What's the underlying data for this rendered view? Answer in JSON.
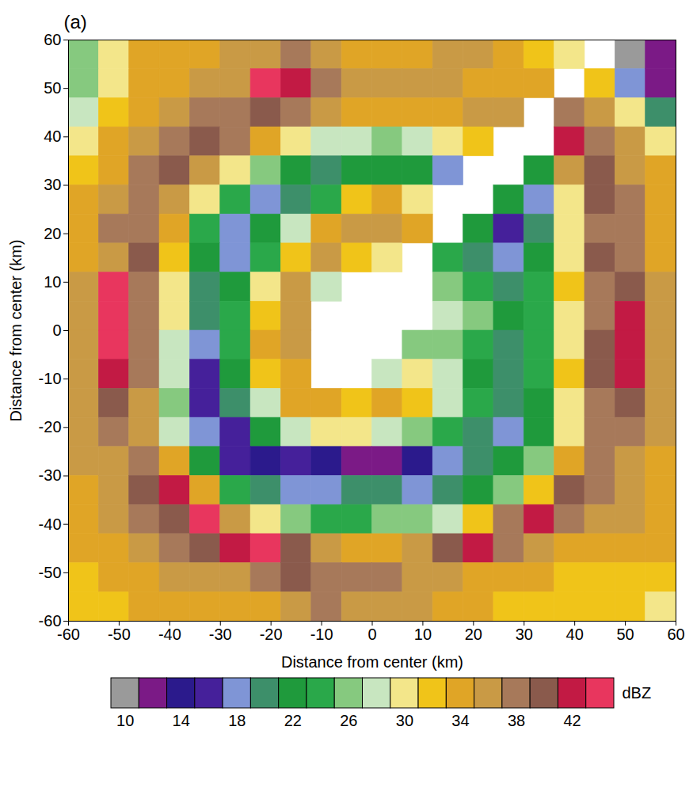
{
  "chart_data": {
    "type": "heatmap",
    "panel_label": "(a)",
    "xlabel": "Distance from center (km)",
    "ylabel": "Distance from center (km)",
    "xlim": [
      -60,
      60
    ],
    "ylim": [
      -60,
      60
    ],
    "xticks": [
      -60,
      -50,
      -40,
      -30,
      -20,
      -10,
      0,
      10,
      20,
      30,
      40,
      50,
      60
    ],
    "yticks": [
      -60,
      -50,
      -40,
      -30,
      -20,
      -10,
      0,
      10,
      20,
      30,
      40,
      50,
      60
    ],
    "x": [
      -57,
      -51,
      -45,
      -39,
      -33,
      -27,
      -21,
      -15,
      -9,
      -3,
      3,
      9,
      15,
      21,
      27,
      33,
      39,
      45,
      51,
      57
    ],
    "y": [
      57,
      51,
      45,
      39,
      33,
      27,
      21,
      15,
      9,
      3,
      -3,
      -9,
      -15,
      -21,
      -27,
      -33,
      -39,
      -45,
      -51,
      -57
    ],
    "z": [
      [
        26,
        30,
        33,
        34,
        34,
        36,
        36,
        37,
        36,
        34,
        33,
        34,
        36,
        35,
        34,
        32,
        30,
        null,
        10,
        12
      ],
      [
        26,
        30,
        33,
        34,
        35,
        36,
        43,
        42,
        38,
        36,
        36,
        36,
        36,
        34,
        34,
        33,
        null,
        32,
        18,
        12
      ],
      [
        28,
        31,
        34,
        36,
        38,
        38,
        40,
        38,
        35,
        34,
        33,
        33,
        34,
        35,
        36,
        null,
        38,
        36,
        30,
        20
      ],
      [
        30,
        33,
        35,
        38,
        40,
        38,
        34,
        30,
        28,
        27,
        26,
        27,
        30,
        32,
        null,
        null,
        42,
        38,
        35,
        30
      ],
      [
        32,
        34,
        37,
        40,
        36,
        30,
        26,
        22,
        20,
        22,
        22,
        21,
        18,
        null,
        null,
        22,
        36,
        40,
        36,
        33
      ],
      [
        33,
        36,
        38,
        36,
        30,
        24,
        18,
        20,
        24,
        32,
        33,
        30,
        null,
        null,
        22,
        18,
        30,
        40,
        38,
        34
      ],
      [
        34,
        37,
        38,
        34,
        24,
        18,
        22,
        28,
        34,
        36,
        35,
        33,
        null,
        22,
        16,
        20,
        30,
        38,
        38,
        34
      ],
      [
        34,
        36,
        40,
        32,
        22,
        18,
        24,
        32,
        36,
        32,
        30,
        null,
        24,
        20,
        18,
        22,
        30,
        40,
        38,
        34
      ],
      [
        36,
        43,
        38,
        30,
        20,
        22,
        30,
        35,
        28,
        null,
        null,
        null,
        26,
        24,
        20,
        24,
        32,
        38,
        40,
        36
      ],
      [
        36,
        43,
        38,
        30,
        20,
        24,
        32,
        36,
        null,
        null,
        null,
        null,
        28,
        26,
        22,
        24,
        30,
        38,
        42,
        36
      ],
      [
        36,
        43,
        37,
        28,
        18,
        24,
        33,
        36,
        null,
        null,
        null,
        26,
        26,
        24,
        20,
        24,
        30,
        40,
        42,
        36
      ],
      [
        36,
        42,
        38,
        28,
        16,
        22,
        32,
        34,
        null,
        null,
        28,
        30,
        28,
        22,
        20,
        24,
        32,
        40,
        42,
        36
      ],
      [
        36,
        40,
        36,
        26,
        16,
        20,
        28,
        34,
        34,
        32,
        33,
        32,
        28,
        24,
        20,
        22,
        30,
        38,
        40,
        36
      ],
      [
        36,
        38,
        36,
        28,
        18,
        16,
        22,
        28,
        30,
        30,
        28,
        26,
        24,
        20,
        18,
        22,
        30,
        38,
        38,
        35
      ],
      [
        35,
        36,
        38,
        34,
        22,
        16,
        14,
        16,
        14,
        12,
        12,
        14,
        18,
        20,
        22,
        26,
        34,
        38,
        36,
        34
      ],
      [
        34,
        36,
        40,
        42,
        34,
        24,
        20,
        18,
        18,
        20,
        20,
        18,
        20,
        22,
        26,
        32,
        40,
        38,
        36,
        34
      ],
      [
        34,
        36,
        38,
        40,
        43,
        36,
        30,
        26,
        24,
        24,
        25,
        26,
        28,
        32,
        38,
        42,
        38,
        36,
        35,
        34
      ],
      [
        33,
        34,
        36,
        38,
        40,
        42,
        43,
        40,
        36,
        34,
        34,
        36,
        40,
        42,
        38,
        36,
        34,
        34,
        34,
        33
      ],
      [
        32,
        33,
        34,
        35,
        36,
        36,
        38,
        40,
        38,
        38,
        37,
        36,
        36,
        34,
        34,
        33,
        32,
        32,
        32,
        32
      ],
      [
        32,
        32,
        33,
        33,
        34,
        34,
        34,
        36,
        38,
        36,
        36,
        35,
        34,
        33,
        32,
        32,
        32,
        31,
        31,
        30
      ]
    ],
    "colorbar": {
      "label": "dBZ",
      "bounds": [
        9,
        11,
        13,
        15,
        17,
        19,
        21,
        23,
        25,
        27,
        29,
        31,
        33,
        35,
        37,
        39,
        41,
        43,
        45
      ],
      "colors": [
        "#9a9a9a",
        "#7b1a86",
        "#2b1a8c",
        "#45209a",
        "#7f95d6",
        "#3d8f6a",
        "#1f9a3c",
        "#2aa84a",
        "#86c97f",
        "#c8e6c0",
        "#f3e68a",
        "#f0c419",
        "#e0a526",
        "#c99a45",
        "#a7795a",
        "#8a5a4c",
        "#c21a44",
        "#e8365e"
      ],
      "ticks": [
        10,
        14,
        18,
        22,
        26,
        30,
        34,
        38,
        42
      ]
    }
  }
}
